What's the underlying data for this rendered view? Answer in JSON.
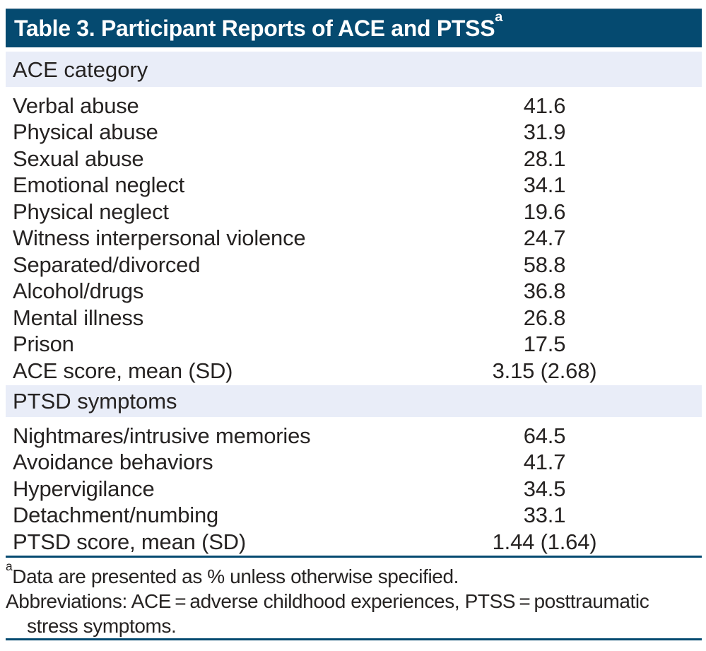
{
  "table": {
    "title": "Table 3. Participant Reports of ACE and PTSS",
    "title_superscript": "a",
    "sections": [
      {
        "header": "ACE category",
        "rows": [
          {
            "label": "Verbal abuse",
            "value": "41.6"
          },
          {
            "label": "Physical abuse",
            "value": "31.9"
          },
          {
            "label": "Sexual abuse",
            "value": "28.1"
          },
          {
            "label": "Emotional neglect",
            "value": "34.1"
          },
          {
            "label": "Physical neglect",
            "value": "19.6"
          },
          {
            "label": "Witness interpersonal violence",
            "value": "24.7"
          },
          {
            "label": "Separated/divorced",
            "value": "58.8"
          },
          {
            "label": "Alcohol/drugs",
            "value": "36.8"
          },
          {
            "label": "Mental illness",
            "value": "26.8"
          },
          {
            "label": "Prison",
            "value": "17.5"
          },
          {
            "label": "ACE score, mean (SD)",
            "value": "3.15 (2.68)"
          }
        ]
      },
      {
        "header": "PTSD symptoms",
        "rows": [
          {
            "label": "Nightmares/intrusive memories",
            "value": "64.5"
          },
          {
            "label": "Avoidance behaviors",
            "value": "41.7"
          },
          {
            "label": "Hypervigilance",
            "value": "34.5"
          },
          {
            "label": "Detachment/numbing",
            "value": "33.1"
          },
          {
            "label": "PTSD score, mean (SD)",
            "value": "1.44 (1.64)"
          }
        ]
      }
    ],
    "footnotes": {
      "marker": "a",
      "line1": "Data are presented as % unless otherwise specified.",
      "line2": "Abbreviations: ACE = adverse childhood experiences, PTSS = posttraumatic",
      "line3": "stress symptoms."
    },
    "colors": {
      "header_bg": "#054a70",
      "band_bg": "#e9edf8",
      "rule_color": "#054a70",
      "text_color": "#262322",
      "title_text": "#ffffff"
    }
  }
}
